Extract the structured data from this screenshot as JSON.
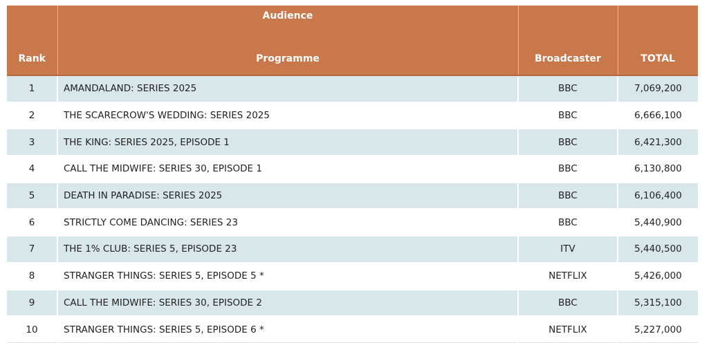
{
  "header": {
    "group_label": "Audience",
    "rank": "Rank",
    "programme": "Programme",
    "broadcaster": "Broadcaster",
    "total": "TOTAL"
  },
  "rows": [
    {
      "rank": "1",
      "programme": "AMANDALAND: SERIES 2025",
      "broadcaster": "BBC",
      "total": "7,069,200"
    },
    {
      "rank": "2",
      "programme": "THE SCARECROW'S WEDDING: SERIES 2025",
      "broadcaster": "BBC",
      "total": "6,666,100"
    },
    {
      "rank": "3",
      "programme": "THE KING: SERIES 2025, EPISODE 1",
      "broadcaster": "BBC",
      "total": "6,421,300"
    },
    {
      "rank": "4",
      "programme": "CALL THE MIDWIFE: SERIES 30, EPISODE 1",
      "broadcaster": "BBC",
      "total": "6,130,800"
    },
    {
      "rank": "5",
      "programme": "DEATH IN PARADISE: SERIES 2025",
      "broadcaster": "BBC",
      "total": "6,106,400"
    },
    {
      "rank": "6",
      "programme": "STRICTLY COME DANCING: SERIES 23",
      "broadcaster": "BBC",
      "total": "5,440,900"
    },
    {
      "rank": "7",
      "programme": "THE 1% CLUB: SERIES 5, EPISODE 23",
      "broadcaster": "ITV",
      "total": "5,440,500"
    },
    {
      "rank": "8",
      "programme": "STRANGER THINGS: SERIES 5, EPISODE 5 *",
      "broadcaster": "NETFLIX",
      "total": "5,426,000"
    },
    {
      "rank": "9",
      "programme": "CALL THE MIDWIFE: SERIES 30, EPISODE 2",
      "broadcaster": "BBC",
      "total": "5,315,100"
    },
    {
      "rank": "10",
      "programme": "STRANGER THINGS: SERIES 5, EPISODE 6 *",
      "broadcaster": "NETFLIX",
      "total": "5,227,000"
    }
  ],
  "colors": {
    "header_bg": "#c8784a",
    "stripe_bg": "#d8e7ec"
  }
}
